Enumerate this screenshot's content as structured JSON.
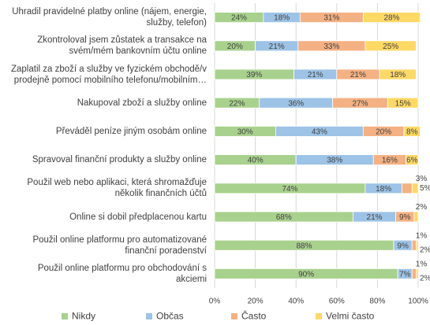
{
  "chart_data": {
    "type": "stacked-barh",
    "categories": [
      "Uhradil pravidelné platby online (nájem, energie,\nslužby, telefon)",
      "Zkontroloval jsem zůstatek a transakce na\nsvém/mém bankovním účtu online",
      "Zaplatil za zboží a služby ve fyzickém obchodě/v\nprodejně pomocí mobilního telefonu/mobilním…",
      "Nakupoval zboží a služby online",
      "Převáděl peníze jiným osobám online",
      "Spravoval finanční produkty a služby online",
      "Použil web nebo aplikaci, která shromažďuje\nněkolik finančních účtů",
      "Online si dobil předplacenou kartu",
      "Použil online platformu pro automatizované\nfinanční poradenství",
      "Použil online platformu pro obchodování s\nakciemi"
    ],
    "series": [
      {
        "name": "Nikdy",
        "color": "#a9d18e",
        "values": [
          24,
          20,
          39,
          22,
          30,
          40,
          74,
          68,
          88,
          90
        ],
        "value_labels": [
          "24%",
          "20%",
          "39%",
          "22%",
          "30%",
          "40%",
          "74%",
          "68%",
          "88%",
          "90%"
        ]
      },
      {
        "name": "Občas",
        "color": "#9dc3e6",
        "values": [
          18,
          21,
          21,
          36,
          43,
          38,
          18,
          21,
          9,
          7
        ],
        "value_labels": [
          "18%",
          "21%",
          "21%",
          "36%",
          "43%",
          "38%",
          "18%",
          "21%",
          "9%",
          "7%"
        ]
      },
      {
        "name": "Často",
        "color": "#f4b183",
        "values": [
          31,
          33,
          21,
          27,
          20,
          16,
          5,
          9,
          2,
          2
        ],
        "value_labels": [
          "31%",
          "33%",
          "21%",
          "27%",
          "20%",
          "16%",
          "5%",
          "9%",
          "2%",
          "2%"
        ]
      },
      {
        "name": "Velmi často",
        "color": "#ffd966",
        "values": [
          28,
          25,
          18,
          15,
          8,
          6,
          3,
          2,
          1,
          1
        ],
        "value_labels": [
          "28%",
          "25%",
          "18%",
          "15%",
          "8%",
          "6%",
          "3%",
          "2%",
          "1%",
          "1%"
        ]
      }
    ],
    "xlim": [
      0,
      100
    ],
    "xticks": [
      {
        "value": 0,
        "label": "0%"
      },
      {
        "value": 20,
        "label": "20%"
      },
      {
        "value": 40,
        "label": "40%"
      },
      {
        "value": 60,
        "label": "60%"
      },
      {
        "value": 80,
        "label": "80%"
      },
      {
        "value": 100,
        "label": "100%"
      }
    ],
    "grid": true
  }
}
